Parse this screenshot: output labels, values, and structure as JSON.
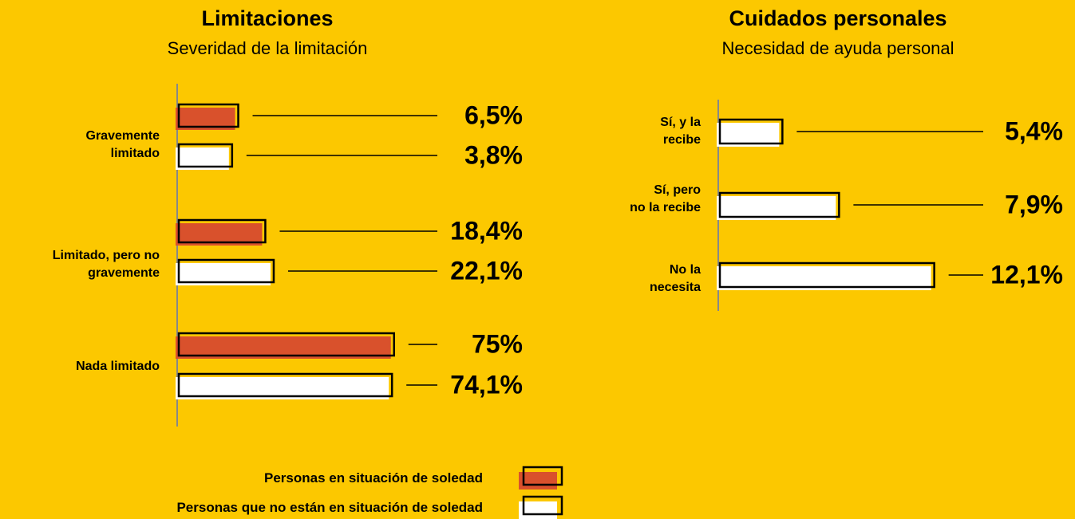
{
  "chart_data": [
    {
      "type": "hbar",
      "title": "Limitaciones",
      "subtitle": "Severidad de la limitación",
      "categories": [
        "Gravemente\nlimitado",
        "Limitado, pero no\ngravemente",
        "Nada limitado"
      ],
      "series": [
        {
          "name": "Personas en situación de soledad",
          "color": "#d9512c",
          "values": [
            6.5,
            18.4,
            75
          ],
          "value_labels": [
            "6,5%",
            "18,4%",
            "75%"
          ]
        },
        {
          "name": "Personas que no están en situación de soledad",
          "color": "#ffffff",
          "values": [
            3.8,
            22.1,
            74.1
          ],
          "value_labels": [
            "3,8%",
            "22,1%",
            "74,1%"
          ]
        }
      ]
    },
    {
      "type": "hbar",
      "title": "Cuidados personales",
      "subtitle": "Necesidad de ayuda personal",
      "categories": [
        "Sí, y la\nrecibe",
        "Sí, pero\nno la recibe",
        "No la\nnecesita"
      ],
      "values": [
        5.4,
        7.9,
        12.1
      ],
      "value_labels": [
        "5,4%",
        "7,9%",
        "12,1%"
      ],
      "color": "#ffffff"
    }
  ]
}
